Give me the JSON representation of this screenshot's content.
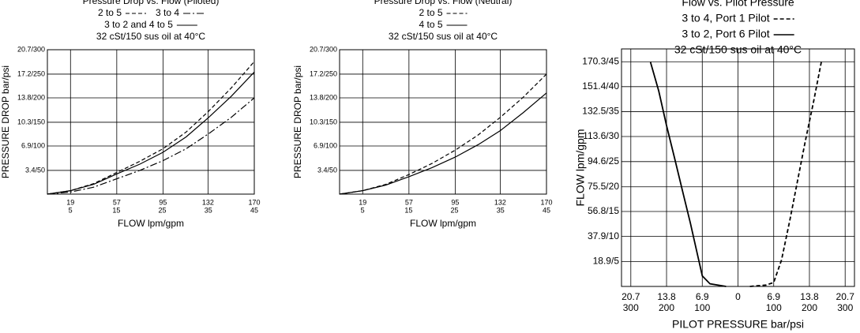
{
  "chart_data": [
    {
      "type": "line",
      "title": "Pressure Drop vs. Flow (Piloted)",
      "note": "32 cSt/150 sus oil at 40°C",
      "xlabel": "FLOW lpm/gpm",
      "ylabel": "PRESSURE DROP bar/psi",
      "x": [
        0,
        19,
        38,
        57,
        76,
        95,
        114,
        132,
        151,
        170
      ],
      "series": [
        {
          "name": "2 to 5",
          "color": "#000000",
          "linestyle": "dashed",
          "values": [
            0,
            0.5,
            1.5,
            3.1,
            4.7,
            6.5,
            8.9,
            11.8,
            15.2,
            19.0
          ]
        },
        {
          "name": "3 to 4",
          "color": "#000000",
          "linestyle": "dashdot",
          "values": [
            0,
            0.3,
            1.0,
            2.2,
            3.4,
            4.8,
            6.5,
            8.6,
            11.0,
            13.8
          ]
        },
        {
          "name": "3 to 2 and 4 to 5",
          "color": "#000000",
          "linestyle": "solid",
          "values": [
            0,
            0.5,
            1.4,
            2.9,
            4.3,
            6.0,
            8.2,
            10.9,
            14.0,
            17.5
          ]
        }
      ],
      "xlim": [
        0,
        170
      ],
      "xticks": [
        19,
        57,
        95,
        132,
        170
      ],
      "x2lim": [
        0,
        45
      ],
      "x2ticks": [
        5,
        15,
        25,
        35,
        45
      ],
      "ylim": [
        0,
        20.7
      ],
      "yticks": [
        {
          "value": 3.4,
          "label": "3.4/50"
        },
        {
          "value": 6.9,
          "label": "6.9/100"
        },
        {
          "value": 10.3,
          "label": "10.3/150"
        },
        {
          "value": 13.8,
          "label": "13.8/200"
        },
        {
          "value": 17.2,
          "label": "17.2/250"
        },
        {
          "value": 20.7,
          "label": "20.7/300"
        }
      ],
      "grid": true
    },
    {
      "type": "line",
      "title": "Pressure Drop vs. Flow (Neutral)",
      "note": "32 cSt/150 sus oil at 40°C",
      "xlabel": "FLOW lpm/gpm",
      "ylabel": "PRESSURE DROP bar/psi",
      "x": [
        0,
        19,
        38,
        57,
        76,
        95,
        114,
        132,
        151,
        170
      ],
      "series": [
        {
          "name": "2 to 5",
          "color": "#000000",
          "linestyle": "dashed",
          "values": [
            0,
            0.5,
            1.4,
            2.8,
            4.4,
            6.3,
            8.5,
            11.0,
            13.9,
            17.2
          ]
        },
        {
          "name": "4 to 5",
          "color": "#000000",
          "linestyle": "solid",
          "values": [
            0,
            0.5,
            1.3,
            2.5,
            3.8,
            5.3,
            7.1,
            9.1,
            11.7,
            14.5
          ]
        }
      ],
      "xlim": [
        0,
        170
      ],
      "xticks": [
        19,
        57,
        95,
        132,
        170
      ],
      "x2lim": [
        0,
        45
      ],
      "x2ticks": [
        5,
        15,
        25,
        35,
        45
      ],
      "ylim": [
        0,
        20.7
      ],
      "yticks": [
        {
          "value": 3.4,
          "label": "3.4/50"
        },
        {
          "value": 6.9,
          "label": "6.9/100"
        },
        {
          "value": 10.3,
          "label": "10.3/150"
        },
        {
          "value": 13.8,
          "label": "13.8/200"
        },
        {
          "value": 17.2,
          "label": "17.2/250"
        },
        {
          "value": 20.7,
          "label": "20.7/300"
        }
      ],
      "grid": true
    },
    {
      "type": "line",
      "title": "Flow vs. Pilot Pressure",
      "note": "32 cSt/150 sus oil at 40°C",
      "xlabel": "PILOT PRESSURE bar/psi",
      "ylabel": "FLOW lpm/gpm",
      "series": [
        {
          "name": "3 to 4, Port 1 Pilot",
          "color": "#000000",
          "linestyle": "dashed",
          "x": [
            2.3,
            5.4,
            6.9,
            8.4,
            10,
            11.5,
            13,
            14.6,
            16.1
          ],
          "values": [
            0,
            1,
            3,
            20,
            50,
            80,
            110,
            140,
            170
          ]
        },
        {
          "name": "3 to 2, Port 6 Pilot",
          "color": "#000000",
          "linestyle": "solid",
          "x": [
            -16.9,
            -15.3,
            -13.8,
            -12.3,
            -10.7,
            -9.2,
            -7.7,
            -6.9,
            -5.4,
            -2.3
          ],
          "values": [
            170,
            148,
            122,
            98,
            72,
            48,
            22,
            8,
            2,
            0
          ]
        }
      ],
      "xlim": [
        -22.5,
        22.5
      ],
      "xticks": [
        {
          "value": -20.7,
          "label": "20.7"
        },
        {
          "value": -13.8,
          "label": "13.8"
        },
        {
          "value": -6.9,
          "label": "6.9"
        },
        0,
        6.9,
        13.8,
        20.7
      ],
      "x2lim": [
        -326,
        326
      ],
      "x2ticks": [
        {
          "value": -300,
          "label": "300"
        },
        {
          "value": -200,
          "label": "200"
        },
        {
          "value": -100,
          "label": "100"
        },
        100,
        200,
        300
      ],
      "ylim": [
        0,
        180
      ],
      "yticks": [
        {
          "value": 18.9,
          "label": "18.9/5"
        },
        {
          "value": 37.9,
          "label": "37.9/10"
        },
        {
          "value": 56.8,
          "label": "56.8/15"
        },
        {
          "value": 75.5,
          "label": "75.5/20"
        },
        {
          "value": 94.6,
          "label": "94.6/25"
        },
        {
          "value": 113.6,
          "label": "113.6/30"
        },
        {
          "value": 132.5,
          "label": "132.5/35"
        },
        {
          "value": 151.4,
          "label": "151.4/40"
        },
        {
          "value": 170.3,
          "label": "170.3/45"
        }
      ],
      "grid": true
    }
  ]
}
